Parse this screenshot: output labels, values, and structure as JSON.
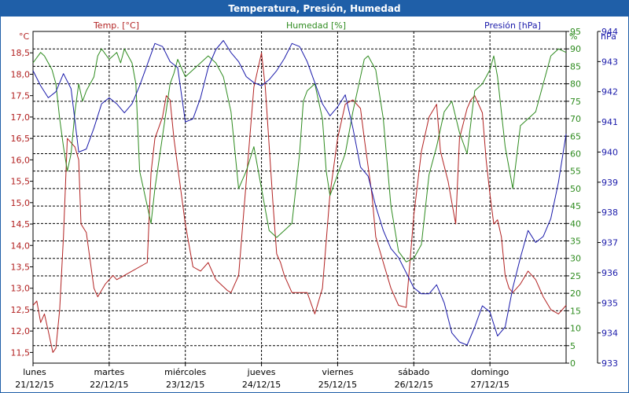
{
  "title": "Temperatura, Presión, Humedad",
  "colors": {
    "temp": "#b22222",
    "hum": "#2e8b1f",
    "pres": "#1a1aaa",
    "header": "#1f5fa8",
    "grid": "#000000"
  },
  "chart_data": {
    "type": "line",
    "title": "Temperatura, Presión, Humedad",
    "axes": {
      "temp": {
        "label": "Temp. [°C]",
        "unit": "°C",
        "range": [
          11.25,
          19.0
        ],
        "ticks": [
          11.5,
          12.0,
          12.5,
          13.0,
          13.5,
          14.0,
          14.5,
          15.0,
          15.5,
          16.0,
          16.5,
          17.0,
          17.5,
          18.0,
          18.5
        ],
        "tick_labels": [
          "11,5",
          "12,0",
          "12,5",
          "13,0",
          "13,5",
          "14,0",
          "14,5",
          "15,0",
          "15,5",
          "16,0",
          "16,5",
          "17,0",
          "17,5",
          "18,0",
          "18,5"
        ]
      },
      "hum": {
        "label": "Humedad [%]",
        "unit": "%",
        "range": [
          0,
          95
        ],
        "ticks": [
          0,
          5,
          10,
          15,
          20,
          25,
          30,
          35,
          40,
          45,
          50,
          55,
          60,
          65,
          70,
          75,
          80,
          85,
          90,
          95
        ],
        "tick_labels": [
          "0",
          "5",
          "10",
          "15",
          "20",
          "25",
          "30",
          "35",
          "40",
          "45",
          "50",
          "55",
          "60",
          "65",
          "70",
          "75",
          "80",
          "85",
          "90",
          "95"
        ]
      },
      "pres": {
        "label": "Presión [hPa]",
        "unit": "hPa",
        "range": [
          933,
          944
        ],
        "ticks": [
          933,
          934,
          935,
          936,
          937,
          938,
          939,
          940,
          941,
          942,
          943,
          944
        ],
        "tick_labels": [
          "933",
          "934",
          "935",
          "936",
          "937",
          "938",
          "939",
          "940",
          "941",
          "942",
          "943",
          "944"
        ]
      }
    },
    "x_range": [
      0,
      7
    ],
    "days": [
      {
        "name": "lunes",
        "date": "21/12/15"
      },
      {
        "name": "martes",
        "date": "22/12/15"
      },
      {
        "name": "miércoles",
        "date": "23/12/15"
      },
      {
        "name": "jueves",
        "date": "24/12/15"
      },
      {
        "name": "viernes",
        "date": "25/12/15"
      },
      {
        "name": "sábado",
        "date": "26/12/15"
      },
      {
        "name": "domingo",
        "date": "27/12/15"
      }
    ],
    "series": [
      {
        "name": "Temp. [°C]",
        "axis": "temp",
        "x": [
          0,
          0.05,
          0.1,
          0.15,
          0.2,
          0.26,
          0.3,
          0.35,
          0.4,
          0.45,
          0.5,
          0.55,
          0.6,
          0.63,
          0.7,
          0.8,
          0.85,
          0.95,
          1.05,
          1.1,
          1.3,
          1.5,
          1.55,
          1.6,
          1.7,
          1.75,
          1.8,
          1.85,
          2.0,
          2.1,
          2.2,
          2.3,
          2.4,
          2.55,
          2.6,
          2.7,
          2.8,
          2.9,
          3.0,
          3.05,
          3.15,
          3.2,
          3.25,
          3.3,
          3.4,
          3.5,
          3.6,
          3.7,
          3.8,
          3.9,
          4.0,
          4.1,
          4.2,
          4.3,
          4.35,
          4.45,
          4.5,
          4.6,
          4.7,
          4.8,
          4.9,
          5.0,
          5.1,
          5.2,
          5.3,
          5.35,
          5.45,
          5.5,
          5.55,
          5.6,
          5.7,
          5.75,
          5.8,
          5.9,
          5.95,
          6.0,
          6.05,
          6.1,
          6.15,
          6.2,
          6.25,
          6.3,
          6.4,
          6.5,
          6.6,
          6.7,
          6.8,
          6.9,
          7.0
        ],
        "values": [
          12.6,
          12.7,
          12.2,
          12.4,
          12.0,
          11.5,
          11.6,
          12.5,
          14.2,
          16.5,
          16.4,
          16.3,
          16.0,
          14.5,
          14.3,
          13.0,
          12.8,
          13.1,
          13.3,
          13.2,
          13.4,
          13.6,
          15.7,
          16.5,
          17.0,
          17.5,
          17.4,
          16.5,
          14.5,
          13.5,
          13.4,
          13.6,
          13.2,
          12.95,
          12.9,
          13.3,
          15.5,
          17.7,
          18.5,
          17.7,
          15.0,
          13.8,
          13.6,
          13.3,
          12.9,
          12.9,
          12.9,
          12.4,
          13.0,
          15.2,
          16.5,
          17.3,
          17.4,
          17.2,
          16.5,
          15.2,
          14.2,
          13.6,
          13.0,
          12.6,
          12.55,
          14.7,
          16.2,
          17.0,
          17.3,
          16.2,
          15.5,
          15.0,
          14.5,
          16.5,
          17.2,
          17.4,
          17.5,
          17.1,
          16.0,
          15.2,
          14.5,
          14.6,
          14.2,
          13.3,
          13.0,
          12.9,
          13.1,
          13.4,
          13.2,
          12.8,
          12.5,
          12.4,
          12.6
        ]
      },
      {
        "name": "Humedad [%]",
        "axis": "hum",
        "x": [
          0,
          0.1,
          0.15,
          0.2,
          0.25,
          0.3,
          0.35,
          0.4,
          0.45,
          0.5,
          0.55,
          0.6,
          0.65,
          0.7,
          0.8,
          0.85,
          0.9,
          1.0,
          1.05,
          1.1,
          1.15,
          1.2,
          1.3,
          1.35,
          1.4,
          1.5,
          1.55,
          1.6,
          1.7,
          1.8,
          1.85,
          1.9,
          2.0,
          2.1,
          2.2,
          2.3,
          2.4,
          2.5,
          2.6,
          2.7,
          2.8,
          2.9,
          3.0,
          3.1,
          3.2,
          3.3,
          3.4,
          3.45,
          3.5,
          3.55,
          3.6,
          3.7,
          3.8,
          3.85,
          3.9,
          4.0,
          4.1,
          4.2,
          4.3,
          4.35,
          4.4,
          4.5,
          4.6,
          4.7,
          4.8,
          4.9,
          5.0,
          5.1,
          5.2,
          5.3,
          5.4,
          5.5,
          5.6,
          5.7,
          5.8,
          5.9,
          6.0,
          6.05,
          6.1,
          6.2,
          6.3,
          6.4,
          6.5,
          6.6,
          6.7,
          6.8,
          6.9,
          7.0
        ],
        "values": [
          86,
          89,
          88,
          86,
          84,
          80,
          70,
          62,
          55,
          60,
          72,
          80,
          75,
          78,
          82,
          88,
          90,
          87,
          88,
          89,
          86,
          90,
          86,
          80,
          55,
          45,
          40,
          50,
          65,
          80,
          83,
          87,
          82,
          84,
          86,
          88,
          86,
          82,
          72,
          50,
          55,
          62,
          50,
          38,
          36,
          38,
          40,
          50,
          60,
          75,
          78,
          80,
          70,
          55,
          48,
          54,
          60,
          72,
          82,
          87,
          88,
          84,
          70,
          45,
          32,
          29,
          30,
          34,
          54,
          62,
          72,
          75,
          66,
          60,
          78,
          80,
          84,
          88,
          82,
          62,
          50,
          68,
          70,
          72,
          80,
          88,
          90,
          89
        ],
        "x_dense": [
          0,
          0.1,
          0.2,
          0.3,
          0.35,
          0.4,
          0.5,
          0.6,
          0.7,
          0.8,
          0.9,
          1.0,
          1.1,
          1.2,
          1.3,
          1.4,
          1.5,
          1.6,
          1.7,
          1.8,
          1.9,
          2.0,
          2.1,
          2.2,
          2.3,
          2.4,
          2.5,
          2.6,
          2.7,
          2.8,
          2.9,
          3.0,
          3.1,
          3.2,
          3.3,
          3.4,
          3.5,
          3.6,
          3.7,
          3.8,
          3.9,
          4.0,
          4.1,
          4.2,
          4.3,
          4.4,
          4.5,
          4.6,
          4.7,
          4.8,
          4.9,
          5.0,
          5.1,
          5.2,
          5.3,
          5.4,
          5.5,
          5.6,
          5.7,
          5.8,
          5.9,
          6.0,
          6.1,
          6.2,
          6.3,
          6.4,
          6.5,
          6.6,
          6.7,
          6.8,
          6.9,
          7.0
        ]
      },
      {
        "name": "Presión [hPa]",
        "axis": "pres",
        "x": [
          0,
          0.1,
          0.2,
          0.3,
          0.35,
          0.4,
          0.5,
          0.6,
          0.7,
          0.8,
          0.9,
          1.0,
          1.1,
          1.2,
          1.3,
          1.4,
          1.5,
          1.6,
          1.7,
          1.8,
          1.9,
          2.0,
          2.1,
          2.2,
          2.3,
          2.4,
          2.5,
          2.6,
          2.7,
          2.8,
          2.9,
          3.0,
          3.1,
          3.2,
          3.3,
          3.4,
          3.5,
          3.6,
          3.7,
          3.8,
          3.9,
          4.0,
          4.1,
          4.2,
          4.3,
          4.4,
          4.5,
          4.6,
          4.7,
          4.8,
          4.9,
          5.0,
          5.1,
          5.2,
          5.3,
          5.4,
          5.5,
          5.6,
          5.7,
          5.8,
          5.9,
          6.0,
          6.1,
          6.2,
          6.3,
          6.4,
          6.5,
          6.6,
          6.7,
          6.8,
          6.9,
          7.0
        ],
        "values": [
          942.7,
          942.2,
          941.8,
          942.0,
          942.3,
          942.6,
          942.1,
          940.0,
          940.1,
          940.8,
          941.6,
          941.8,
          941.6,
          941.3,
          941.6,
          942.2,
          942.9,
          943.6,
          943.5,
          943.0,
          942.8,
          941.0,
          941.1,
          941.8,
          942.8,
          943.4,
          943.7,
          943.3,
          943.0,
          942.5,
          942.3,
          942.2,
          942.4,
          942.7,
          943.1,
          943.6,
          943.5,
          943.0,
          942.3,
          941.6,
          941.2,
          941.5,
          941.9,
          940.8,
          939.5,
          939.2,
          938.2,
          937.4,
          936.8,
          936.5,
          936.0,
          935.5,
          935.3,
          935.3,
          935.6,
          935.0,
          934.0,
          933.7,
          933.6,
          934.2,
          934.9,
          934.7,
          933.9,
          934.2,
          935.5,
          936.5,
          937.4,
          937.0,
          937.2,
          937.8,
          939.0,
          940.6
        ]
      }
    ]
  }
}
